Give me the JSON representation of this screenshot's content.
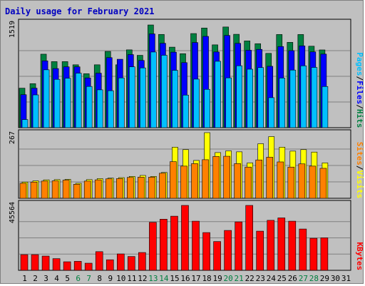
{
  "colors": {
    "hits": "#008040",
    "files": "#0000ff",
    "pages": "#00c0ff",
    "visits": "#ffff00",
    "sites": "#ff8000",
    "kbytes": "#ff0000",
    "title": "#0000c0",
    "weekend": "#008040",
    "weekday": "#000000",
    "panel": "#c0c0c0",
    "gridline": "#808080"
  },
  "chart_data": {
    "type": "bar",
    "title": "Daily usage for February 2021",
    "x": [
      "1",
      "2",
      "3",
      "4",
      "5",
      "6",
      "7",
      "8",
      "9",
      "10",
      "11",
      "12",
      "13",
      "14",
      "15",
      "16",
      "17",
      "18",
      "19",
      "20",
      "21",
      "22",
      "23",
      "24",
      "25",
      "26",
      "27",
      "28",
      "29",
      "30",
      "31"
    ],
    "weekend_days": [
      "6",
      "7",
      "13",
      "14",
      "20",
      "21",
      "27",
      "28"
    ],
    "panels": [
      {
        "id": "hits",
        "ymax_label": "1519",
        "ymax": 1519,
        "axis_labels": [
          {
            "text": "Pages",
            "color": "#00c0ff"
          },
          {
            "text": "/",
            "color": "#000000"
          },
          {
            "text": "Files",
            "color": "#0000ff"
          },
          {
            "text": "/",
            "color": "#000000"
          },
          {
            "text": "Hits",
            "color": "#008040"
          }
        ],
        "series": [
          {
            "name": "Hits",
            "color": "#008040",
            "values": [
              584,
              651,
              1087,
              977,
              977,
              930,
              798,
              930,
              1128,
              930,
              1151,
              1070,
              1519,
              1379,
              1191,
              1094,
              1392,
              1474,
              1225,
              1489,
              1381,
              1283,
              1242,
              1099,
              1378,
              1262,
              1378,
              1205,
              1150,
              null,
              null
            ]
          },
          {
            "name": "Files",
            "color": "#0000ff",
            "values": [
              488,
              584,
              988,
              874,
              900,
              900,
              736,
              806,
              1036,
              1012,
              1081,
              994,
              1387,
              1248,
              1117,
              962,
              1259,
              1350,
              1120,
              1364,
              1247,
              1145,
              1158,
              908,
              1200,
              1139,
              1210,
              1121,
              1088,
              null,
              null
            ]
          },
          {
            "name": "Pages",
            "color": "#00c0ff",
            "values": [
              120,
              485,
              856,
              715,
              731,
              806,
              610,
              560,
              547,
              736,
              900,
              884,
              1119,
              1071,
              848,
              482,
              718,
              567,
              982,
              737,
              916,
              865,
              889,
              444,
              734,
              852,
              915,
              891,
              609,
              null,
              null
            ]
          }
        ]
      },
      {
        "id": "visits",
        "ymax_label": "267",
        "ymax": 267,
        "axis_labels": [
          {
            "text": "Sites",
            "color": "#ff8000"
          },
          {
            "text": "/",
            "color": "#000000"
          },
          {
            "text": "Visits",
            "color": "#ffff00"
          }
        ],
        "series": [
          {
            "name": "Visits",
            "color": "#ffff00",
            "values": [
              66,
              71,
              75,
              76,
              77,
              61,
              76,
              80,
              82,
              84,
              89,
              93,
              89,
              105,
              208,
              198,
              154,
              267,
              186,
              193,
              189,
              144,
              222,
              251,
              208,
              192,
              198,
              188,
              144,
              null,
              null
            ]
          },
          {
            "name": "Sites",
            "color": "#ff8000",
            "values": [
              61,
              66,
              70,
              71,
              74,
              57,
              70,
              75,
              79,
              80,
              85,
              86,
              86,
              102,
              149,
              131,
              141,
              157,
              170,
              171,
              141,
              127,
              156,
              167,
              148,
              127,
              140,
              131,
              122,
              null,
              null
            ]
          }
        ]
      },
      {
        "id": "kbytes",
        "ymax_label": "45564",
        "ymax": 45564,
        "axis_labels": [
          {
            "text": "KBytes",
            "color": "#ff0000"
          }
        ],
        "series": [
          {
            "name": "KBytes",
            "color": "#ff0000",
            "values": [
              11000,
              11000,
              10000,
              8200,
              6000,
              6300,
              5000,
              13100,
              7400,
              11500,
              9700,
              12500,
              33700,
              35900,
              38000,
              45564,
              34500,
              26500,
              20200,
              28000,
              34000,
              45564,
              27500,
              35100,
              36800,
              34500,
              29000,
              22500,
              22800,
              null,
              null
            ]
          }
        ]
      }
    ]
  }
}
